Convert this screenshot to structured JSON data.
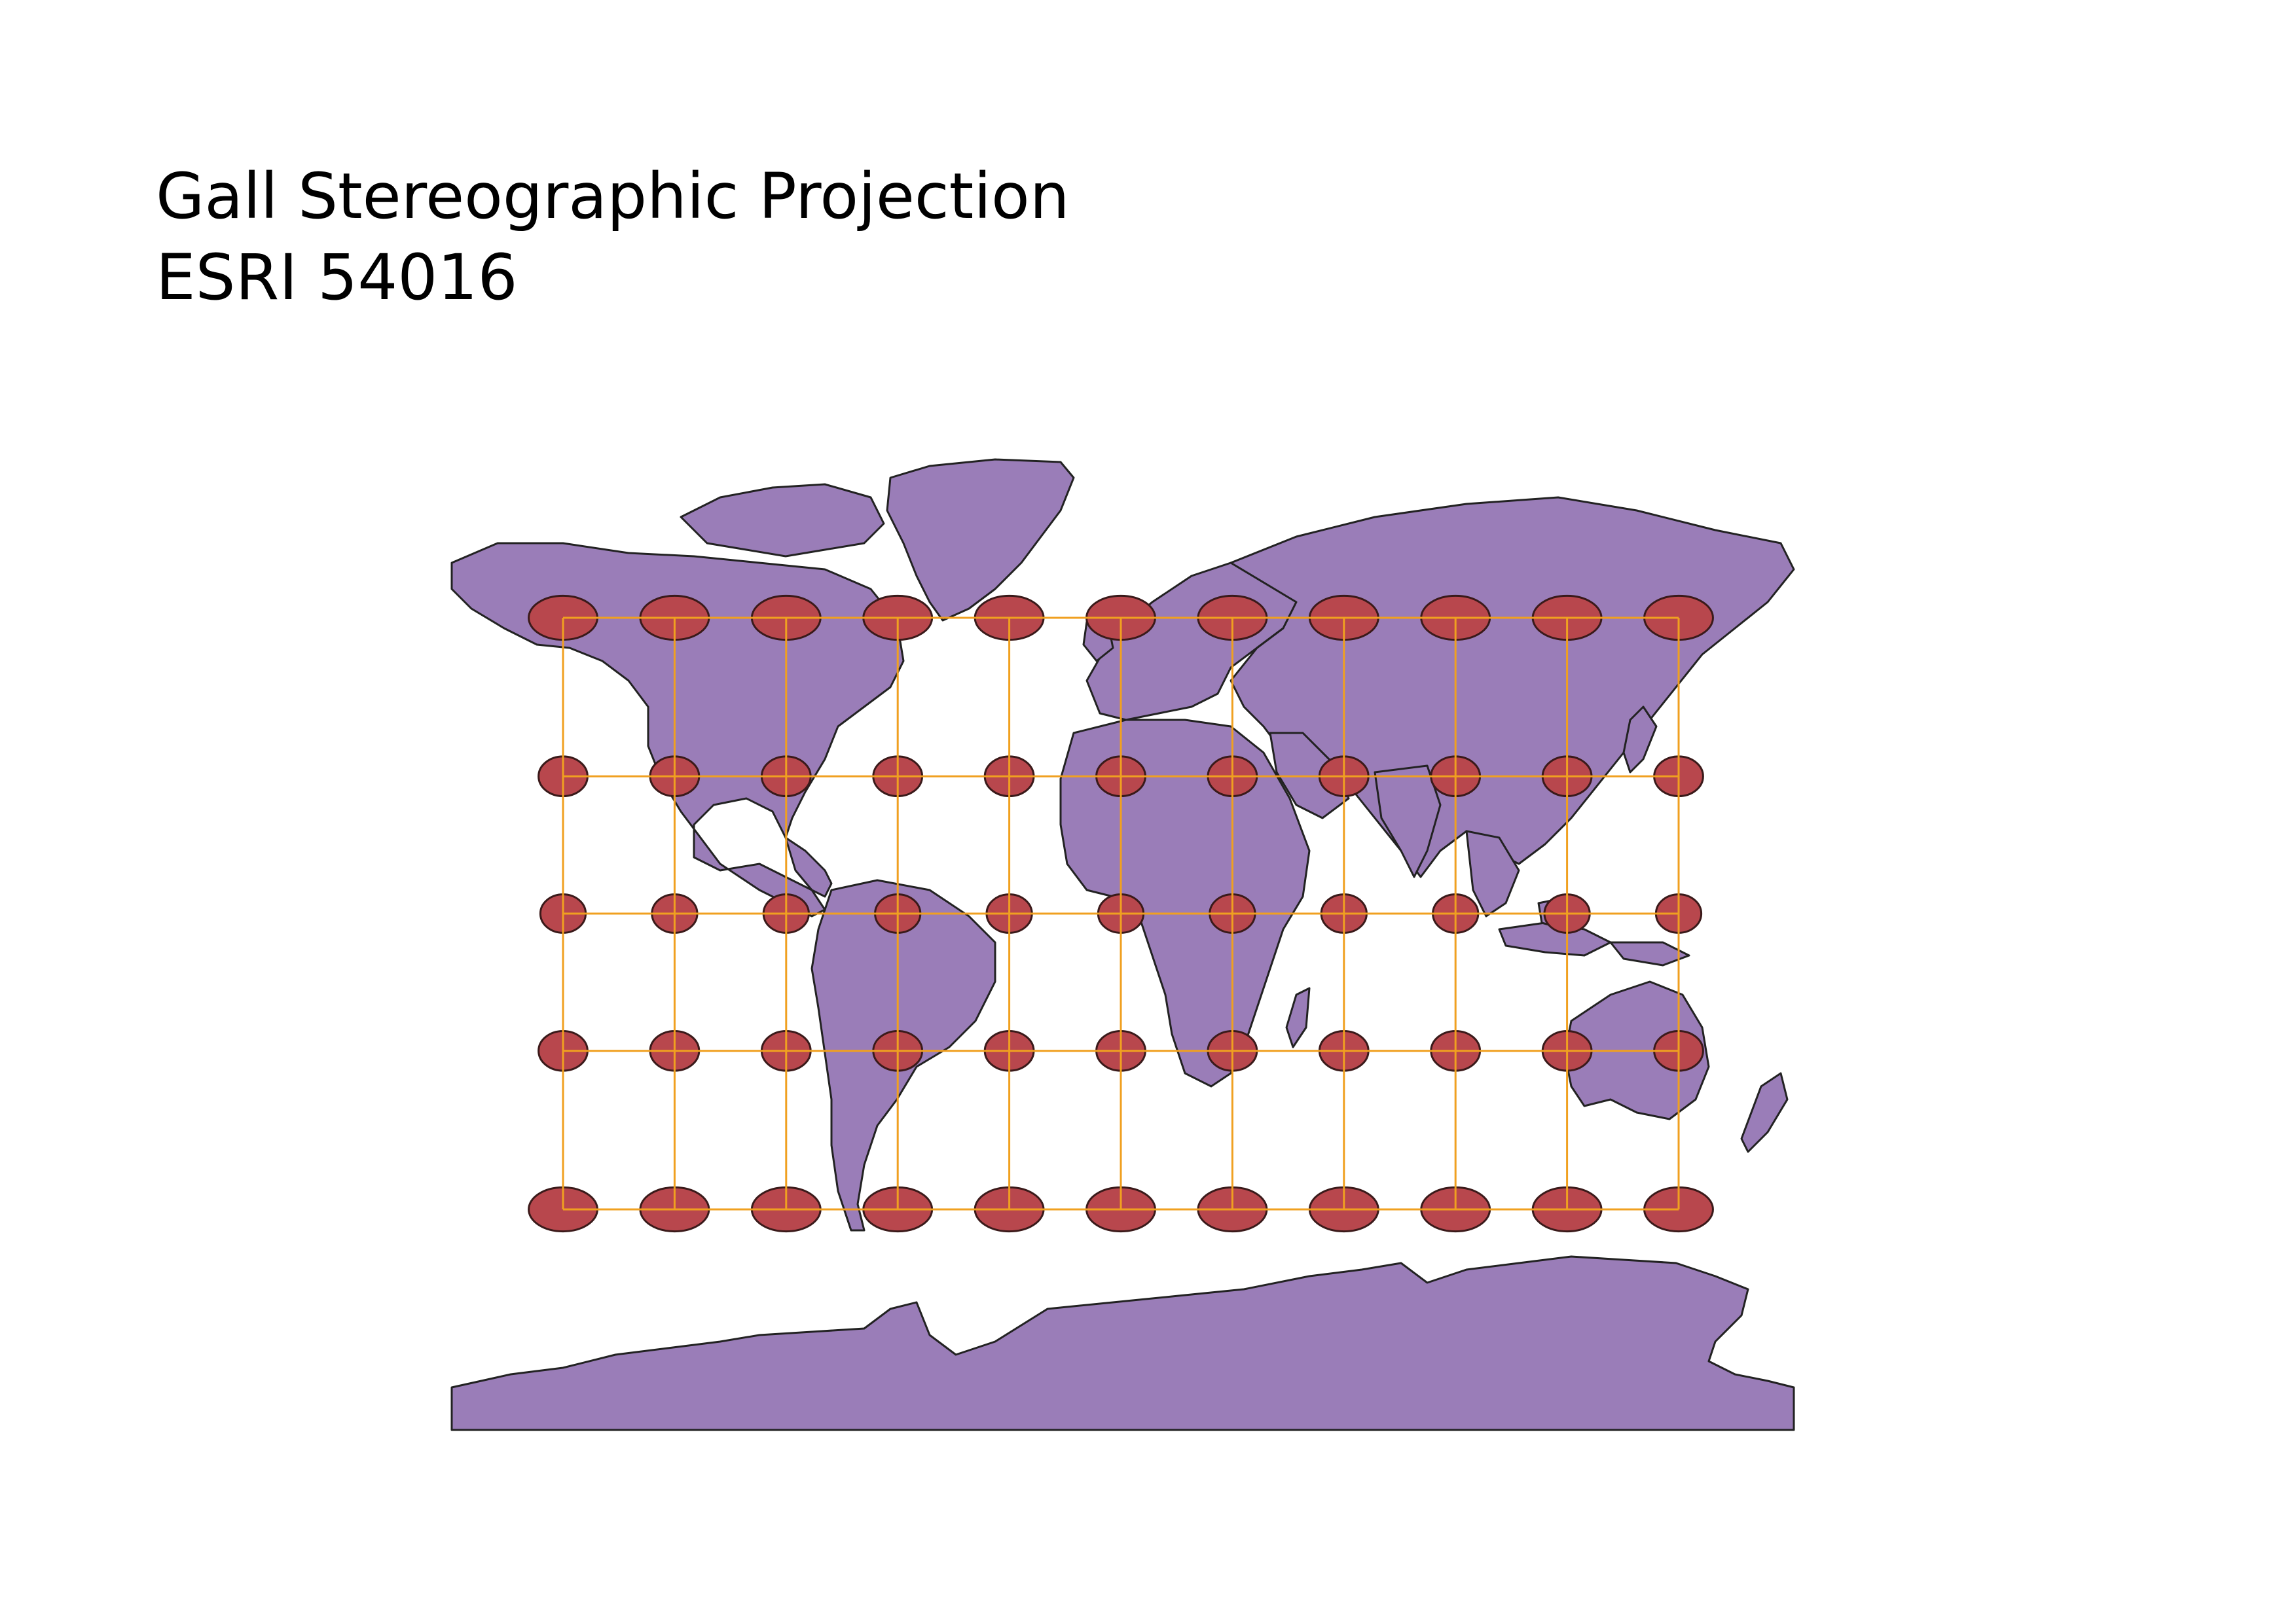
{
  "title": "Gall Stereographic Projection",
  "subtitle": "ESRI 54016",
  "colors": {
    "background": "#ffffff",
    "land_fill": "#9a7db8",
    "land_stroke": "#222222",
    "ellipse_fill": "#b8474d",
    "ellipse_stroke": "#3a1a1a",
    "graticule": "#f0a020"
  },
  "indicatrix": {
    "longitudes": [
      -150,
      -120,
      -90,
      -60,
      -30,
      0,
      30,
      60,
      90,
      120,
      150
    ],
    "latitudes": [
      60,
      30,
      0,
      -30,
      -60
    ]
  }
}
